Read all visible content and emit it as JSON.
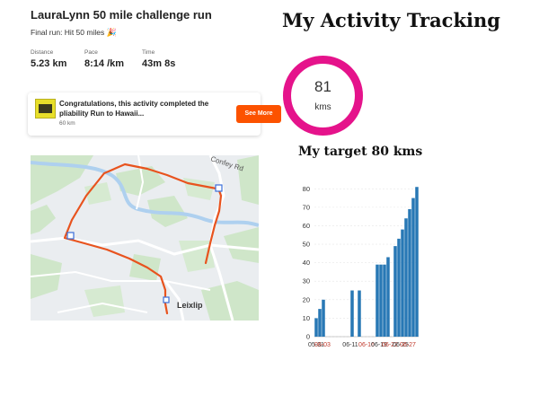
{
  "activity": {
    "title": "LauraLynn 50 mile challenge run",
    "final_run": "Final run: Hit 50 miles",
    "final_run_emoji": "🎉",
    "stats": [
      {
        "label": "Distance",
        "value": "5.23 km"
      },
      {
        "label": "Pace",
        "value": "8:14 /km"
      },
      {
        "label": "Time",
        "value": "43m 8s"
      }
    ]
  },
  "congrats": {
    "text": "Congratulations, this activity completed the pliability Run to Hawaii...",
    "subtext": "60 km",
    "button_label": "See More"
  },
  "map": {
    "road_label": "Confey Rd",
    "town_label": "Leixlip",
    "route_color": "#e8531e"
  },
  "tracker": {
    "title": "My Activity Tracking",
    "ring_value": "81",
    "ring_unit": "kms",
    "ring_color": "#e5138b",
    "ring_progress": 1.0,
    "target_title": "My target 80 kms"
  },
  "chart_data": {
    "type": "bar",
    "color": "#2878b5",
    "ylim": [
      0,
      85
    ],
    "yticks": [
      0,
      10,
      20,
      30,
      40,
      50,
      60,
      70,
      80
    ],
    "ytick_labels": [
      "0",
      "10",
      "20",
      "30",
      "40",
      "50",
      "60",
      "70",
      "80"
    ],
    "xtick_labels": [
      "05-31",
      "06-03",
      "06-11",
      "06-16",
      "06-19",
      "06-22",
      "06-25",
      "06-27"
    ],
    "xtick_rendering": "overlapping, partially illegible",
    "grid": true,
    "series": [
      {
        "values": [
          10,
          15,
          20,
          0,
          0,
          0,
          0,
          0,
          0,
          0,
          25,
          0,
          25,
          0,
          0,
          0,
          0,
          39,
          39,
          39,
          43,
          0,
          49,
          53,
          58,
          64,
          69,
          75,
          81
        ]
      }
    ]
  }
}
